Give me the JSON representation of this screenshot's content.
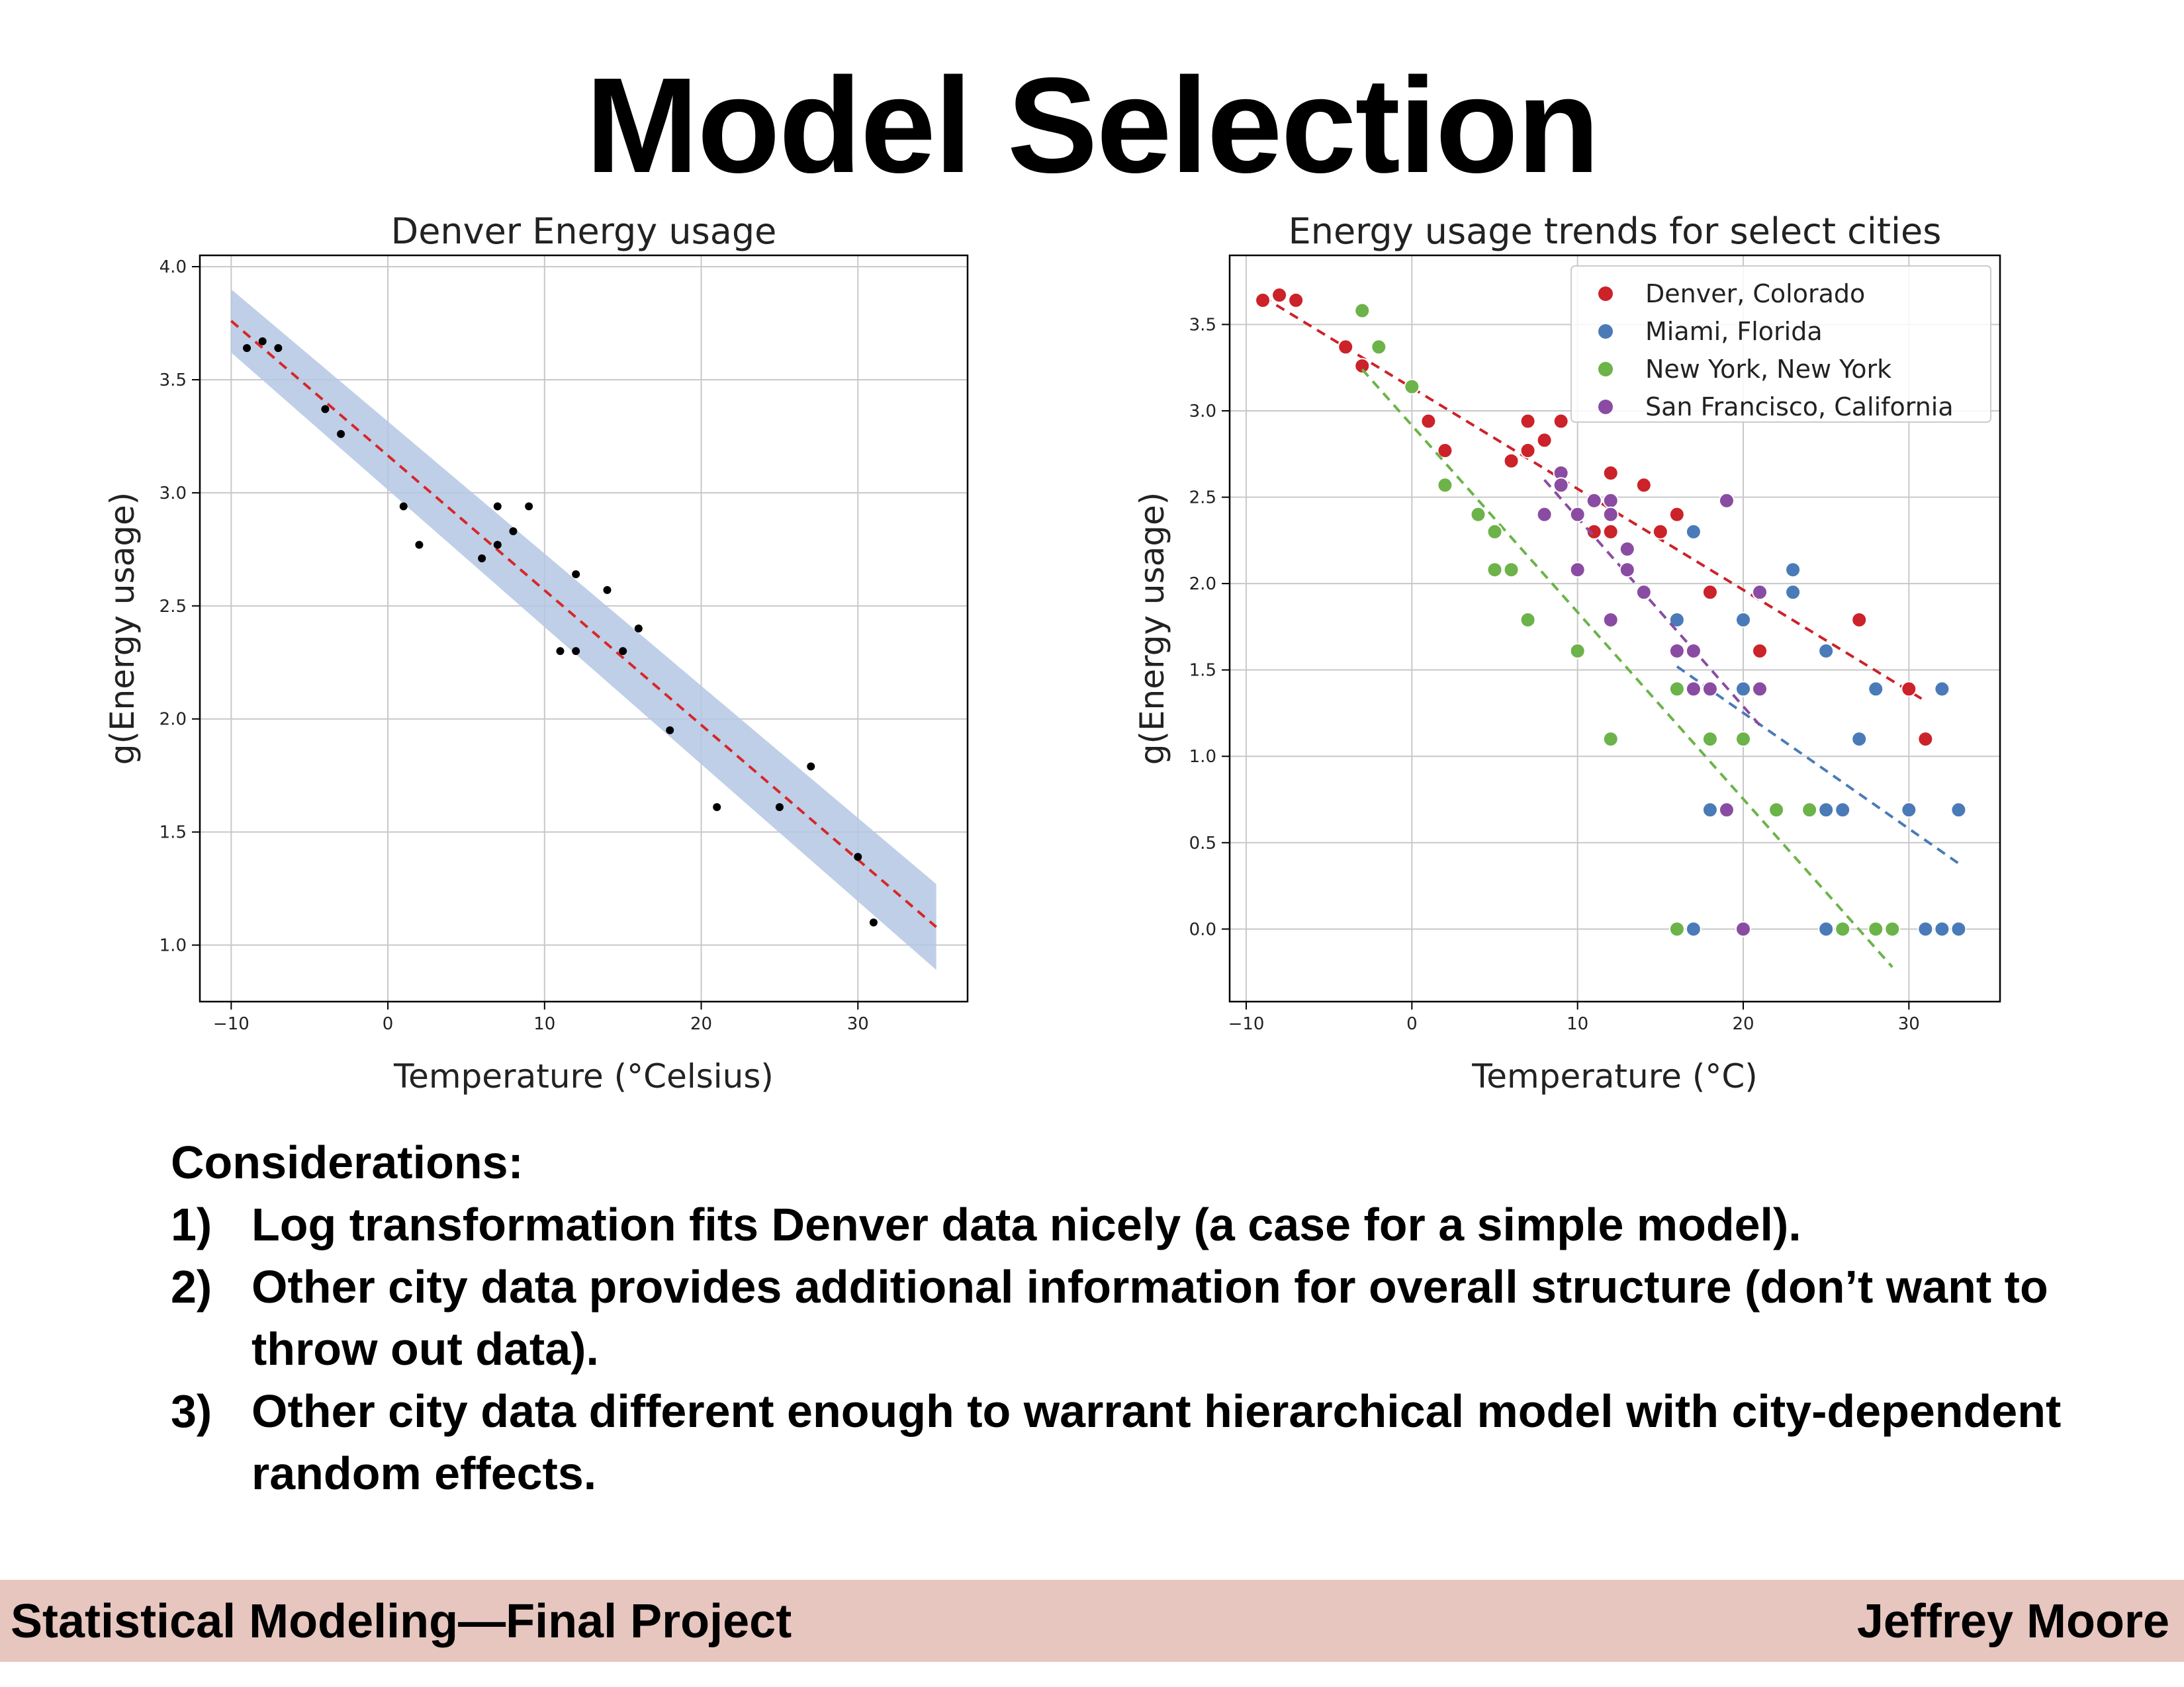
{
  "slide": {
    "title": "Model Selection"
  },
  "considerations": {
    "heading": "Considerations:",
    "items": [
      {
        "num": "1)",
        "text": "Log transformation fits Denver data nicely (a case for a simple model)."
      },
      {
        "num": "2)",
        "text": "Other city data provides additional information for overall structure (don’t want to throw out data)."
      },
      {
        "num": "3)",
        "text": "Other city data different enough to warrant hierarchical model with city-dependent random effects."
      }
    ]
  },
  "footer": {
    "left": "Statistical Modeling—Final Project",
    "right": "Jeffrey Moore"
  },
  "colors": {
    "footer_bg": "#e6c6bf",
    "denver": "#cc2229",
    "miami": "#4a7bb8",
    "new_york": "#6cb34a",
    "san_francisco": "#8a4ca2",
    "band": "#b4c7e4"
  },
  "chart_data": [
    {
      "type": "scatter",
      "title": "Denver Energy usage",
      "xlabel": "Temperature (°Celsius)",
      "ylabel": "g(Energy usage)",
      "xlim": [
        -12,
        37
      ],
      "ylim": [
        0.75,
        4.05
      ],
      "xticks": [
        -10,
        0,
        10,
        20,
        30
      ],
      "yticks": [
        1.0,
        1.5,
        2.0,
        2.5,
        3.0,
        3.5,
        4.0
      ],
      "grid": true,
      "points": {
        "x": [
          -9,
          -8,
          -7,
          -4,
          -3,
          1,
          2,
          6,
          7,
          7,
          8,
          9,
          11,
          12,
          12,
          14,
          15,
          16,
          18,
          21,
          25,
          27,
          30,
          31
        ],
        "y": [
          3.64,
          3.67,
          3.64,
          3.37,
          3.26,
          2.94,
          2.77,
          2.71,
          2.94,
          2.77,
          2.83,
          2.94,
          2.3,
          2.64,
          2.3,
          2.57,
          2.3,
          2.4,
          1.95,
          1.61,
          1.61,
          1.79,
          1.39,
          1.1
        ]
      },
      "fit": {
        "x": [
          -10,
          35
        ],
        "y": [
          3.76,
          1.08
        ]
      },
      "band": {
        "x": [
          -10,
          35
        ],
        "upper": [
          3.9,
          1.27
        ],
        "lower": [
          3.62,
          0.89
        ]
      }
    },
    {
      "type": "scatter",
      "title": "Energy usage trends for select cities",
      "xlabel": "Temperature (°C)",
      "ylabel": "g(Energy usage)",
      "xlim": [
        -11,
        35.5
      ],
      "ylim": [
        -0.42,
        3.9
      ],
      "xticks": [
        -10,
        0,
        10,
        20,
        30
      ],
      "yticks": [
        0.0,
        0.5,
        1.0,
        1.5,
        2.0,
        2.5,
        3.0,
        3.5
      ],
      "grid": true,
      "legend": "top-right",
      "series": [
        {
          "name": "Denver, Colorado",
          "color": "#cc2229",
          "x": [
            -9,
            -8,
            -7,
            -4,
            -3,
            1,
            2,
            6,
            7,
            7,
            8,
            9,
            11,
            12,
            12,
            14,
            15,
            16,
            18,
            21,
            27,
            30,
            31
          ],
          "y": [
            3.64,
            3.67,
            3.64,
            3.37,
            3.26,
            2.94,
            2.77,
            2.71,
            2.94,
            2.77,
            2.83,
            2.94,
            2.3,
            2.64,
            2.3,
            2.57,
            2.3,
            2.4,
            1.95,
            1.61,
            1.79,
            1.39,
            1.1
          ],
          "fit": {
            "x": [
              -9,
              31
            ],
            "y": [
              3.66,
              1.32
            ]
          }
        },
        {
          "name": "Miami, Florida",
          "color": "#4a7bb8",
          "x": [
            16,
            17,
            17,
            18,
            20,
            20,
            23,
            23,
            25,
            25,
            25,
            26,
            27,
            28,
            30,
            31,
            32,
            32,
            33,
            33
          ],
          "y": [
            1.79,
            2.3,
            0.0,
            0.69,
            1.79,
            1.39,
            2.08,
            1.95,
            1.61,
            0.69,
            0.0,
            0.69,
            1.1,
            1.39,
            0.69,
            0.0,
            1.39,
            0.0,
            0.69,
            0.0
          ],
          "fit": {
            "x": [
              16,
              33
            ],
            "y": [
              1.52,
              0.38
            ]
          }
        },
        {
          "name": "New York, New York",
          "color": "#6cb34a",
          "x": [
            -3,
            -2,
            0,
            2,
            4,
            5,
            5,
            6,
            7,
            10,
            12,
            16,
            16,
            18,
            20,
            22,
            24,
            26,
            28,
            29
          ],
          "y": [
            3.58,
            3.37,
            3.14,
            2.57,
            2.4,
            2.3,
            2.08,
            2.08,
            1.79,
            1.61,
            1.1,
            1.39,
            0.0,
            1.1,
            1.1,
            0.69,
            0.69,
            0.0,
            0.0,
            0.0
          ],
          "fit": {
            "x": [
              -3,
              29
            ],
            "y": [
              3.24,
              -0.22
            ]
          }
        },
        {
          "name": "San Francisco, California",
          "color": "#8a4ca2",
          "x": [
            8,
            9,
            9,
            10,
            10,
            11,
            12,
            12,
            12,
            13,
            13,
            14,
            16,
            17,
            17,
            18,
            19,
            19,
            20,
            21,
            21
          ],
          "y": [
            2.4,
            2.64,
            2.57,
            2.4,
            2.08,
            2.48,
            2.48,
            2.4,
            1.79,
            2.2,
            2.08,
            1.95,
            1.61,
            1.61,
            1.39,
            1.39,
            2.48,
            0.69,
            0.0,
            1.95,
            1.39
          ],
          "fit": {
            "x": [
              8,
              21
            ],
            "y": [
              2.6,
              1.18
            ]
          }
        }
      ]
    }
  ]
}
